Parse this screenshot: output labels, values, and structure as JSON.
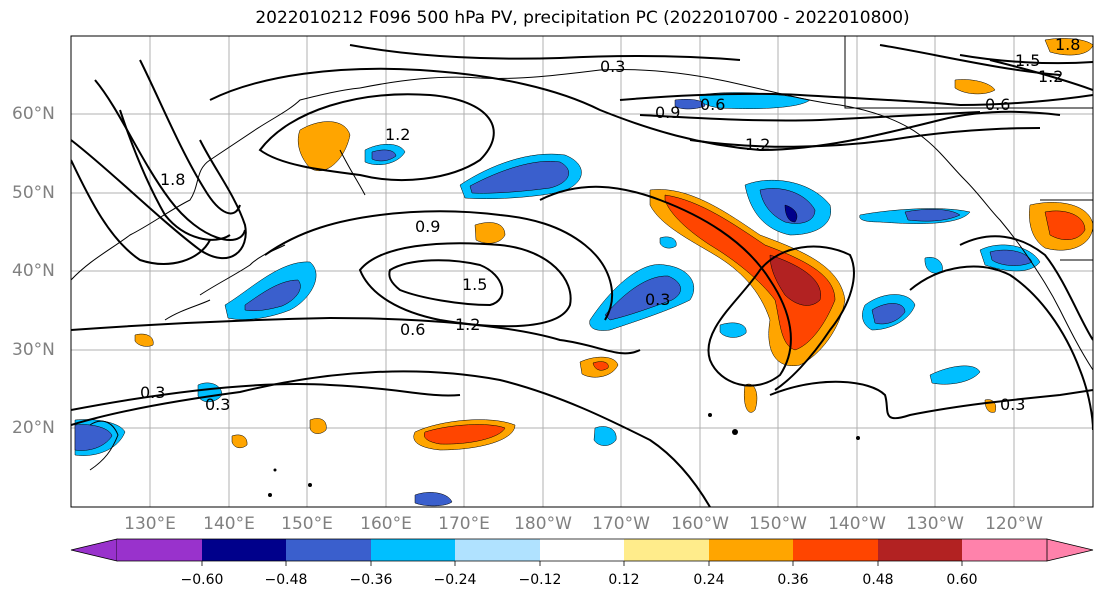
{
  "title": "2022010212 F096 500 hPa PV, precipitation PC (2022010700 - 2022010800)",
  "lat_labels": [
    "60°N",
    "50°N",
    "40°N",
    "30°N",
    "20°N"
  ],
  "lon_labels": [
    "130°E",
    "140°E",
    "150°E",
    "160°E",
    "170°E",
    "180°W",
    "170°W",
    "160°W",
    "150°W",
    "140°W",
    "130°W",
    "120°W"
  ],
  "contour_labels": [
    "0.3",
    "0.6",
    "0.9",
    "1.2",
    "1.5",
    "1.8"
  ],
  "colorbar": {
    "ticks": [
      "−0.60",
      "−0.48",
      "−0.36",
      "−0.24",
      "−0.12",
      "0.12",
      "0.24",
      "0.36",
      "0.48",
      "0.60"
    ],
    "colors": [
      "#9932cc",
      "#00008b",
      "#3a5fcd",
      "#00bfff",
      "#b0e2ff",
      "#ffffff",
      "#ffec8b",
      "#ffa500",
      "#ff4500",
      "#b22222",
      "#ff82ab"
    ]
  },
  "grid": true,
  "map_extent": {
    "lon": [
      "120°E",
      "125°W"
    ],
    "lat": [
      "10°N",
      "70°N"
    ]
  }
}
